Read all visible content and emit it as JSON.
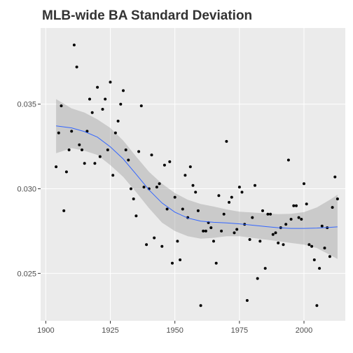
{
  "chart_data": {
    "type": "scatter",
    "title": "MLB-wide BA Standard Deviation",
    "xlabel": "",
    "ylabel": "",
    "xlim": [
      1898,
      2016
    ],
    "ylim": [
      0.0222,
      0.0395
    ],
    "x_ticks": [
      1900,
      1925,
      1950,
      1975,
      2000
    ],
    "x_tick_labels": [
      "1900",
      "1925",
      "1950",
      "1975",
      "2000"
    ],
    "y_ticks": [
      0.025,
      0.03,
      0.035
    ],
    "y_tick_labels": [
      "0.025",
      "0.030",
      "0.035"
    ],
    "grid": true,
    "points": [
      [
        1904,
        0.0313
      ],
      [
        1905,
        0.0333
      ],
      [
        1906,
        0.0349
      ],
      [
        1907,
        0.0287
      ],
      [
        1908,
        0.031
      ],
      [
        1909,
        0.0323
      ],
      [
        1910,
        0.0334
      ],
      [
        1911,
        0.0385
      ],
      [
        1912,
        0.0372
      ],
      [
        1913,
        0.0326
      ],
      [
        1914,
        0.0323
      ],
      [
        1915,
        0.0315
      ],
      [
        1916,
        0.0334
      ],
      [
        1917,
        0.0353
      ],
      [
        1918,
        0.0345
      ],
      [
        1919,
        0.0315
      ],
      [
        1920,
        0.036
      ],
      [
        1921,
        0.0319
      ],
      [
        1922,
        0.0347
      ],
      [
        1923,
        0.0353
      ],
      [
        1924,
        0.0323
      ],
      [
        1925,
        0.0363
      ],
      [
        1926,
        0.0308
      ],
      [
        1927,
        0.0333
      ],
      [
        1928,
        0.034
      ],
      [
        1929,
        0.035
      ],
      [
        1930,
        0.0358
      ],
      [
        1931,
        0.0323
      ],
      [
        1932,
        0.0317
      ],
      [
        1933,
        0.03
      ],
      [
        1934,
        0.0294
      ],
      [
        1935,
        0.0284
      ],
      [
        1936,
        0.0322
      ],
      [
        1937,
        0.0349
      ],
      [
        1938,
        0.0301
      ],
      [
        1939,
        0.0267
      ],
      [
        1940,
        0.03
      ],
      [
        1941,
        0.032
      ],
      [
        1942,
        0.0271
      ],
      [
        1943,
        0.0301
      ],
      [
        1944,
        0.0303
      ],
      [
        1945,
        0.0266
      ],
      [
        1946,
        0.0314
      ],
      [
        1947,
        0.0288
      ],
      [
        1948,
        0.0316
      ],
      [
        1949,
        0.0256
      ],
      [
        1950,
        0.0295
      ],
      [
        1951,
        0.0269
      ],
      [
        1952,
        0.0258
      ],
      [
        1953,
        0.0288
      ],
      [
        1954,
        0.0308
      ],
      [
        1955,
        0.0283
      ],
      [
        1956,
        0.0313
      ],
      [
        1957,
        0.0302
      ],
      [
        1958,
        0.0298
      ],
      [
        1959,
        0.0287
      ],
      [
        1960,
        0.0231
      ],
      [
        1961,
        0.0275
      ],
      [
        1962,
        0.0275
      ],
      [
        1963,
        0.028
      ],
      [
        1964,
        0.0277
      ],
      [
        1965,
        0.0269
      ],
      [
        1966,
        0.0256
      ],
      [
        1967,
        0.0296
      ],
      [
        1968,
        0.0275
      ],
      [
        1969,
        0.0285
      ],
      [
        1970,
        0.0328
      ],
      [
        1971,
        0.0292
      ],
      [
        1972,
        0.0295
      ],
      [
        1973,
        0.0274
      ],
      [
        1974,
        0.0276
      ],
      [
        1975,
        0.0301
      ],
      [
        1976,
        0.0298
      ],
      [
        1977,
        0.0279
      ],
      [
        1978,
        0.0234
      ],
      [
        1979,
        0.027
      ],
      [
        1980,
        0.0283
      ],
      [
        1981,
        0.0302
      ],
      [
        1982,
        0.0247
      ],
      [
        1983,
        0.0269
      ],
      [
        1984,
        0.0287
      ],
      [
        1985,
        0.0253
      ],
      [
        1986,
        0.0285
      ],
      [
        1987,
        0.0285
      ],
      [
        1988,
        0.0273
      ],
      [
        1989,
        0.0274
      ],
      [
        1990,
        0.0268
      ],
      [
        1991,
        0.0277
      ],
      [
        1992,
        0.0267
      ],
      [
        1993,
        0.0279
      ],
      [
        1994,
        0.0317
      ],
      [
        1995,
        0.0282
      ],
      [
        1996,
        0.029
      ],
      [
        1997,
        0.029
      ],
      [
        1998,
        0.0283
      ],
      [
        1999,
        0.0282
      ],
      [
        2000,
        0.0303
      ],
      [
        2001,
        0.0291
      ],
      [
        2002,
        0.0267
      ],
      [
        2003,
        0.0266
      ],
      [
        2004,
        0.0258
      ],
      [
        2005,
        0.0231
      ],
      [
        2006,
        0.0253
      ],
      [
        2007,
        0.0278
      ],
      [
        2008,
        0.0265
      ],
      [
        2009,
        0.0277
      ],
      [
        2010,
        0.026
      ],
      [
        2011,
        0.0289
      ],
      [
        2012,
        0.0307
      ],
      [
        2013,
        0.0294
      ]
    ],
    "smooth_fit": {
      "x": [
        1904,
        1910,
        1915,
        1920,
        1925,
        1930,
        1935,
        1940,
        1945,
        1950,
        1955,
        1960,
        1965,
        1970,
        1975,
        1980,
        1985,
        1990,
        1995,
        2000,
        2005,
        2010,
        2013
      ],
      "y": [
        0.03372,
        0.0336,
        0.03338,
        0.03305,
        0.03248,
        0.03176,
        0.03086,
        0.02993,
        0.02916,
        0.02862,
        0.02827,
        0.02809,
        0.02802,
        0.02798,
        0.02793,
        0.02785,
        0.02777,
        0.0277,
        0.02766,
        0.02766,
        0.02768,
        0.02772,
        0.02775
      ],
      "lower": [
        0.0321,
        0.0324,
        0.03225,
        0.032,
        0.0314,
        0.0307,
        0.0298,
        0.02885,
        0.028,
        0.0275,
        0.0272,
        0.02705,
        0.0271,
        0.0272,
        0.0272,
        0.0271,
        0.027,
        0.0269,
        0.0268,
        0.0267,
        0.0265,
        0.0261,
        0.02585
      ],
      "upper": [
        0.0353,
        0.03475,
        0.0345,
        0.0341,
        0.0336,
        0.03285,
        0.0319,
        0.031,
        0.0303,
        0.02975,
        0.02935,
        0.0291,
        0.02895,
        0.02878,
        0.02865,
        0.0286,
        0.02855,
        0.0285,
        0.02852,
        0.02862,
        0.0289,
        0.02935,
        0.02965
      ]
    },
    "colors": {
      "panel": "#ebebeb",
      "grid": "#ffffff",
      "point": "#000000",
      "fit_line": "#3366ff",
      "ribbon": "#999999",
      "title": "#333333",
      "tick_text": "#4d4d4d"
    }
  }
}
